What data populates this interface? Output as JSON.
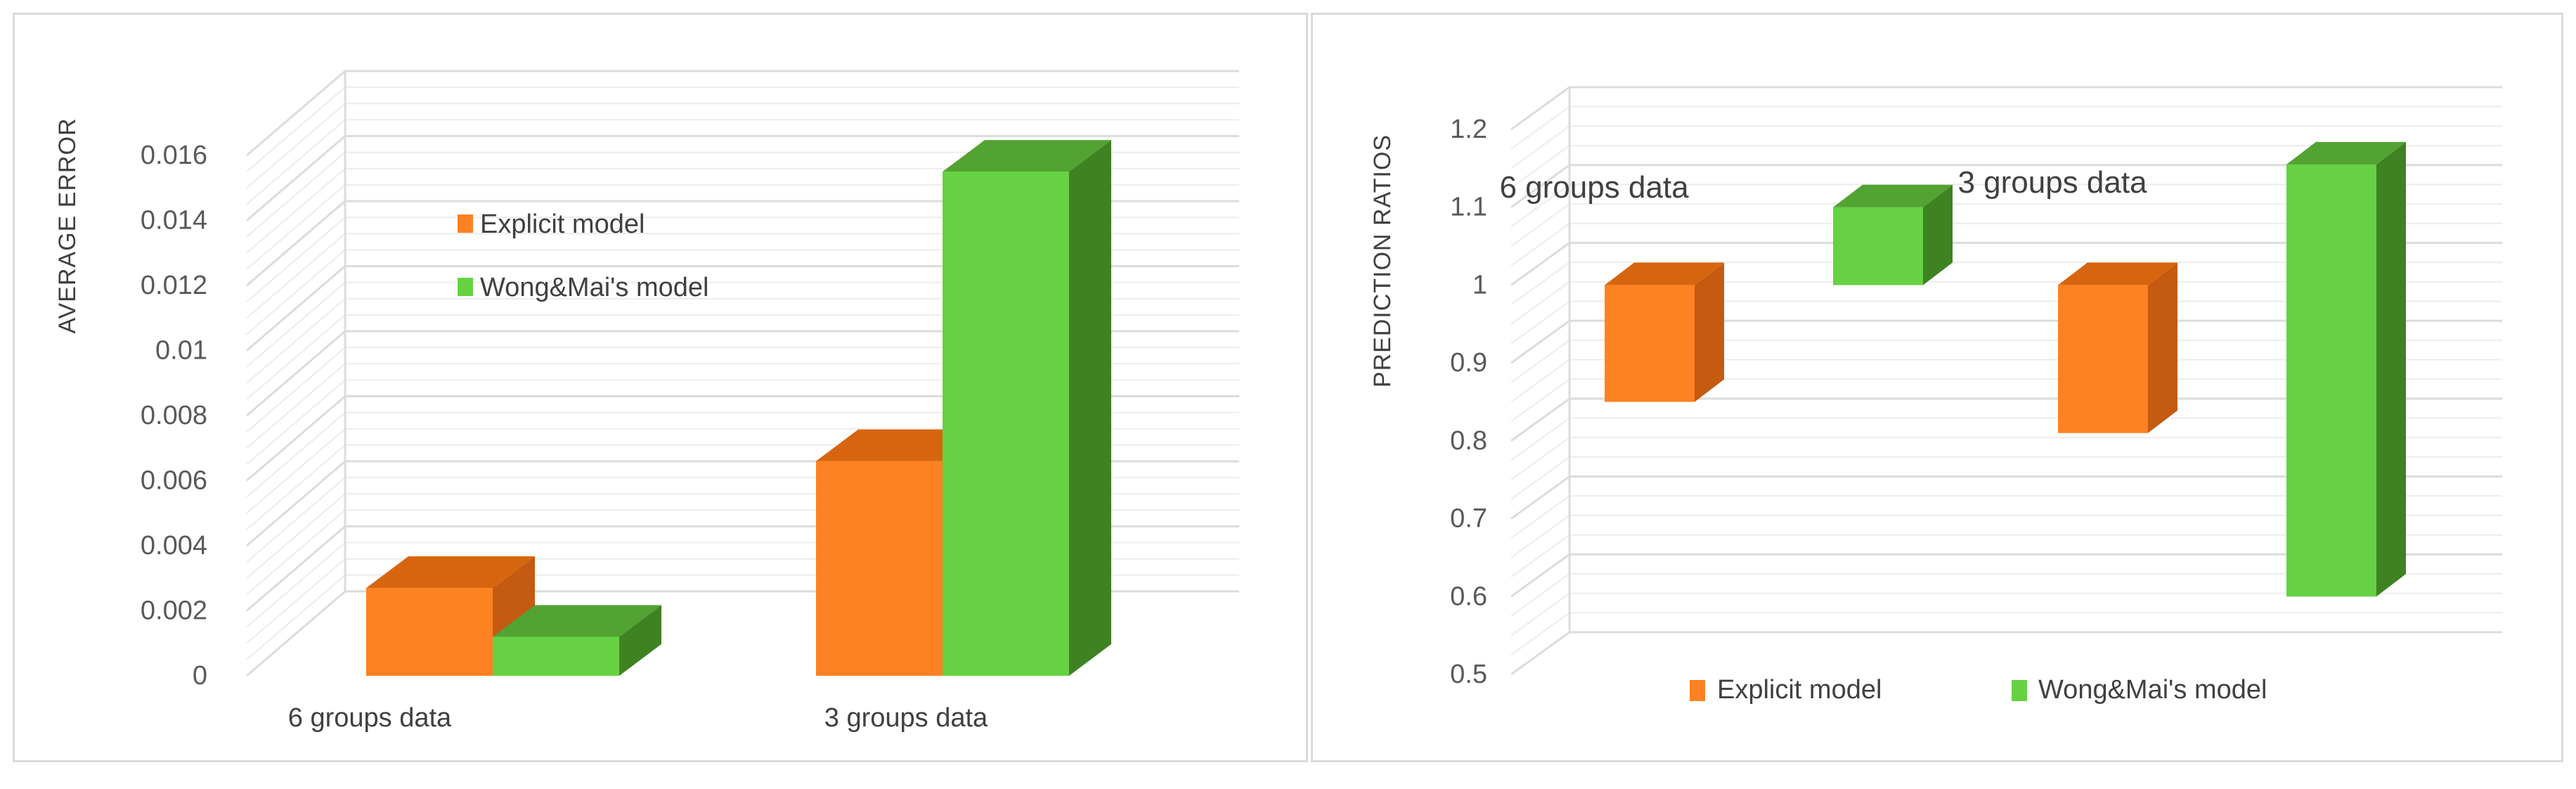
{
  "colors": {
    "explicit_front": "#fe8122",
    "explicit_side": "#c55a11",
    "explicit_top": "#d7650f",
    "wong_front": "#66d243",
    "wong_side": "#3f8222",
    "wong_top": "#52a332"
  },
  "chart_data": [
    {
      "type": "bar",
      "style": "3d-clustered-column",
      "title": "",
      "xlabel": "",
      "ylabel": "AVERAGE ERROR",
      "ylim": [
        0,
        0.016
      ],
      "yticks": [
        "0",
        "0.002",
        "0.004",
        "0.006",
        "0.008",
        "0.01",
        "0.012",
        "0.014",
        "0.016"
      ],
      "categories": [
        "6 groups data",
        "3 groups data"
      ],
      "series": [
        {
          "name": "Explicit model",
          "values": [
            0.0027,
            0.0066
          ],
          "color": "#fe8122"
        },
        {
          "name": "Wong&Mai's model",
          "values": [
            0.0012,
            0.0155
          ],
          "color": "#66d243"
        }
      ],
      "legend": {
        "position": "top-left",
        "items": [
          "Explicit model",
          "Wong&Mai's model"
        ]
      },
      "grid": true
    },
    {
      "type": "bar",
      "style": "3d-floating-range-column",
      "title": "",
      "xlabel": "",
      "ylabel": "PREDICTION RATIOS",
      "ylim": [
        0.5,
        1.2
      ],
      "yticks": [
        "0.5",
        "0.6",
        "0.7",
        "0.8",
        "0.9",
        "1",
        "1.1",
        "1.2"
      ],
      "categories": [
        "6 groups data",
        "3 groups data"
      ],
      "series": [
        {
          "name": "Explicit model",
          "ranges": [
            [
              0.85,
              1.0
            ],
            [
              0.81,
              1.0
            ]
          ],
          "color": "#fe8122"
        },
        {
          "name": "Wong&Mai's model",
          "ranges": [
            [
              1.0,
              1.1
            ],
            [
              0.6,
              1.155
            ]
          ],
          "color": "#66d243"
        }
      ],
      "legend": {
        "position": "bottom",
        "items": [
          "Explicit model",
          "Wong&Mai's model"
        ]
      },
      "annotations": [
        "6 groups data",
        "3 groups data"
      ],
      "grid": true
    }
  ]
}
